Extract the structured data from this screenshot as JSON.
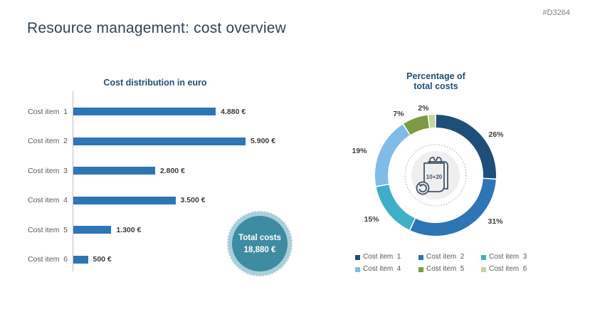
{
  "slide": {
    "title": "Resource management: cost overview",
    "id_tag": "#D3264",
    "background": "#FFFFFF",
    "accent_navy": "#1F4E79"
  },
  "total_badge": {
    "line1": "Total costs",
    "line2": "18,880 €",
    "fill_color": "#3D8CA1",
    "ring_color": "#A9CFD8",
    "text_color": "#FFFFFF"
  },
  "chart_data": [
    {
      "type": "bar",
      "orientation": "horizontal",
      "title": "Cost distribution in euro",
      "categories": [
        "Cost item  1",
        "Cost item  2",
        "Cost item  3",
        "Cost item  4",
        "Cost item  5",
        "Cost item  6"
      ],
      "values": [
        4880,
        5900,
        2800,
        3500,
        1300,
        500
      ],
      "value_labels": [
        "4.880 €",
        "5.900 €",
        "2.800 €",
        "3.500 €",
        "1.300 €",
        "500 €"
      ],
      "bar_color": "#2E75B6",
      "xlim": [
        0,
        5900
      ],
      "grid": false,
      "axis_color": "#BFBFBF"
    },
    {
      "type": "pie",
      "subtype": "donut",
      "title_lines": [
        "Percentage of",
        "total costs"
      ],
      "categories": [
        "Cost item  1",
        "Cost item  2",
        "Cost item  3",
        "Cost item  4",
        "Cost item  5",
        "Cost item  6"
      ],
      "values": [
        26,
        31,
        15,
        19,
        7,
        2
      ],
      "slice_labels": [
        "26%",
        "31%",
        "15%",
        "19%",
        "7%",
        "2%"
      ],
      "colors": [
        "#1F4E79",
        "#2E75B6",
        "#3EAEC9",
        "#7FBCE8",
        "#7C9A45",
        "#C3D69B"
      ],
      "start_angle_deg": 0,
      "direction": "clockwise",
      "legend_position": "bottom",
      "center_icon": "receipt-calculation-icon",
      "center_icon_text": "10+20"
    }
  ]
}
